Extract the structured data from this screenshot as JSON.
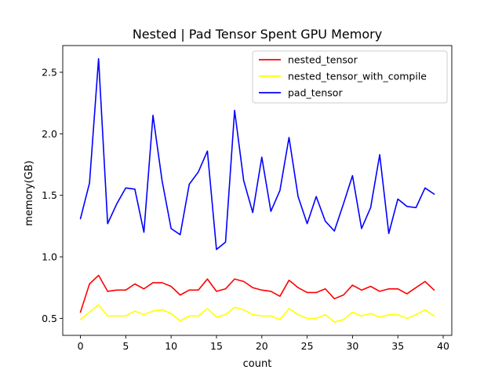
{
  "chart_data": {
    "type": "line",
    "title": "Nested | Pad Tensor Spent GPU Memory",
    "xlabel": "count",
    "ylabel": "memory(GB)",
    "xlim": [
      -1.95,
      40.95
    ],
    "ylim": [
      0.362,
      2.717
    ],
    "xticks": [
      0,
      5,
      10,
      15,
      20,
      25,
      30,
      35,
      40
    ],
    "yticks": [
      0.5,
      1.0,
      1.5,
      2.0,
      2.5
    ],
    "ytick_labels": [
      "0.5",
      "1.0",
      "1.5",
      "2.0",
      "2.5"
    ],
    "grid": false,
    "legend_position": "upper right",
    "x": [
      0,
      1,
      2,
      3,
      4,
      5,
      6,
      7,
      8,
      9,
      10,
      11,
      12,
      13,
      14,
      15,
      16,
      17,
      18,
      19,
      20,
      21,
      22,
      23,
      24,
      25,
      26,
      27,
      28,
      29,
      30,
      31,
      32,
      33,
      34,
      35,
      36,
      37,
      38,
      39
    ],
    "series": [
      {
        "name": "nested_tensor",
        "color": "#ff0000",
        "values": [
          0.55,
          0.78,
          0.85,
          0.72,
          0.73,
          0.73,
          0.78,
          0.74,
          0.79,
          0.79,
          0.76,
          0.69,
          0.73,
          0.73,
          0.82,
          0.72,
          0.74,
          0.82,
          0.8,
          0.75,
          0.73,
          0.72,
          0.68,
          0.81,
          0.75,
          0.71,
          0.71,
          0.74,
          0.66,
          0.69,
          0.77,
          0.73,
          0.76,
          0.72,
          0.74,
          0.74,
          0.7,
          0.75,
          0.8,
          0.73
        ]
      },
      {
        "name": "nested_tensor_with_compile",
        "color": "#ffff00",
        "values": [
          0.49,
          0.55,
          0.61,
          0.52,
          0.52,
          0.52,
          0.56,
          0.53,
          0.56,
          0.57,
          0.54,
          0.48,
          0.52,
          0.52,
          0.58,
          0.51,
          0.53,
          0.59,
          0.57,
          0.53,
          0.52,
          0.52,
          0.49,
          0.58,
          0.53,
          0.5,
          0.5,
          0.53,
          0.47,
          0.49,
          0.55,
          0.52,
          0.54,
          0.51,
          0.53,
          0.53,
          0.5,
          0.53,
          0.57,
          0.52
        ]
      },
      {
        "name": "pad_tensor",
        "color": "#0000ff",
        "values": [
          1.31,
          1.6,
          2.61,
          1.27,
          1.43,
          1.56,
          1.55,
          1.2,
          2.15,
          1.62,
          1.23,
          1.18,
          1.59,
          1.69,
          1.86,
          1.06,
          1.12,
          2.19,
          1.62,
          1.36,
          1.81,
          1.37,
          1.54,
          1.97,
          1.49,
          1.27,
          1.49,
          1.29,
          1.21,
          1.43,
          1.66,
          1.23,
          1.4,
          1.83,
          1.19,
          1.47,
          1.41,
          1.4,
          1.56,
          1.51
        ]
      }
    ]
  }
}
